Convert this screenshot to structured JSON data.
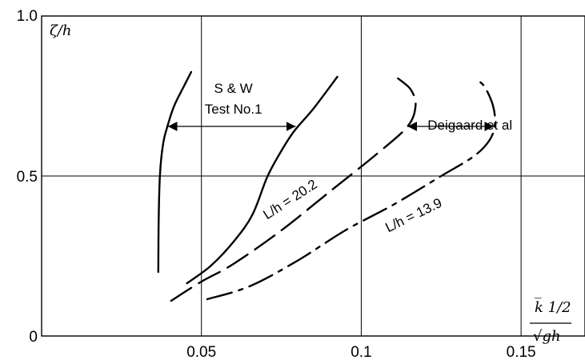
{
  "chart_data": {
    "type": "line",
    "ylabel": "ζ/h",
    "xlabel_num": "k̅ 1/2",
    "xlabel_den": "√gh",
    "xlim": [
      0,
      0.17
    ],
    "ylim": [
      0,
      1.0
    ],
    "x_ticks": [
      {
        "v": 0.05,
        "label": "0.05"
      },
      {
        "v": 0.1,
        "label": "0.1"
      },
      {
        "v": 0.15,
        "label": "0.15"
      }
    ],
    "y_ticks": [
      {
        "v": 0,
        "label": "0"
      },
      {
        "v": 0.5,
        "label": "0.5"
      },
      {
        "v": 1.0,
        "label": "1.0"
      }
    ],
    "grid": true,
    "series": [
      {
        "style": "solid",
        "points": [
          [
            0.0365,
            0.2
          ],
          [
            0.0366,
            0.35
          ],
          [
            0.037,
            0.5
          ],
          [
            0.038,
            0.6
          ],
          [
            0.0395,
            0.66
          ],
          [
            0.0415,
            0.72
          ],
          [
            0.0445,
            0.78
          ],
          [
            0.0468,
            0.825
          ]
        ]
      },
      {
        "style": "solid",
        "points": [
          [
            0.0455,
            0.165
          ],
          [
            0.053,
            0.22
          ],
          [
            0.0605,
            0.3
          ],
          [
            0.066,
            0.38
          ],
          [
            0.0705,
            0.495
          ],
          [
            0.0745,
            0.57
          ],
          [
            0.079,
            0.64
          ],
          [
            0.085,
            0.71
          ],
          [
            0.0925,
            0.81
          ]
        ]
      },
      {
        "style": "dashed",
        "points": [
          [
            0.0405,
            0.11
          ],
          [
            0.05,
            0.17
          ],
          [
            0.06,
            0.225
          ],
          [
            0.075,
            0.33
          ],
          [
            0.09,
            0.45
          ],
          [
            0.105,
            0.57
          ],
          [
            0.1145,
            0.655
          ],
          [
            0.117,
            0.72
          ],
          [
            0.1155,
            0.77
          ],
          [
            0.1115,
            0.805
          ]
        ]
      },
      {
        "style": "dashdot",
        "points": [
          [
            0.0518,
            0.115
          ],
          [
            0.065,
            0.155
          ],
          [
            0.08,
            0.235
          ],
          [
            0.095,
            0.33
          ],
          [
            0.11,
            0.41
          ],
          [
            0.125,
            0.5
          ],
          [
            0.135,
            0.56
          ],
          [
            0.14,
            0.61
          ],
          [
            0.1418,
            0.66
          ],
          [
            0.1412,
            0.72
          ],
          [
            0.1385,
            0.78
          ],
          [
            0.1355,
            0.805
          ]
        ]
      }
    ],
    "annotations": [
      {
        "text": "S & W",
        "x": 0.06,
        "y": 0.76
      },
      {
        "text": "Test No.1",
        "x": 0.06,
        "y": 0.695
      },
      {
        "text": "Deigaard  et al",
        "x": 0.134,
        "y": 0.645
      },
      {
        "text": "L/h = 20.2",
        "x": 0.0785,
        "y": 0.415,
        "angle": -33
      },
      {
        "text": "L/h = 13.9",
        "x": 0.117,
        "y": 0.365,
        "angle": -26
      }
    ],
    "arrows": [
      {
        "x1": 0.0395,
        "x2": 0.0795,
        "y": 0.655
      },
      {
        "x1": 0.1145,
        "x2": 0.1415,
        "y": 0.655
      }
    ]
  }
}
